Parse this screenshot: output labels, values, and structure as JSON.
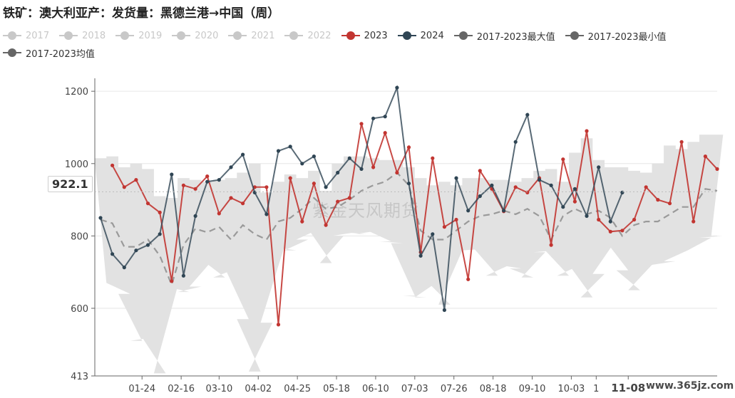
{
  "title": "铁矿：澳大利亚产：发货量：黑德兰港→中国（周）",
  "legend": [
    {
      "label": "2017",
      "color": "#c8c8c8",
      "active": false
    },
    {
      "label": "2018",
      "color": "#c8c8c8",
      "active": false
    },
    {
      "label": "2019",
      "color": "#c8c8c8",
      "active": false
    },
    {
      "label": "2020",
      "color": "#c8c8c8",
      "active": false
    },
    {
      "label": "2021",
      "color": "#c8c8c8",
      "active": false
    },
    {
      "label": "2022",
      "color": "#c8c8c8",
      "active": false
    },
    {
      "label": "2023",
      "color": "#c23531",
      "active": true
    },
    {
      "label": "2024",
      "color": "#2f4554",
      "active": true
    },
    {
      "label": "2017-2023最大值",
      "color": "#666666",
      "active": true
    },
    {
      "label": "2017-2023最小值",
      "color": "#666666",
      "active": true
    },
    {
      "label": "2017-2023均值",
      "color": "#666666",
      "active": true
    }
  ],
  "pointer_label": "922.1",
  "watermark": "紫金天风期货",
  "site_label": "www.365jz.com",
  "chart_data": {
    "type": "line",
    "ylim": [
      413,
      1220
    ],
    "yticks": [
      413,
      600,
      800,
      1000,
      1200
    ],
    "xticks": [
      {
        "label": "01-24",
        "week": 3.5
      },
      {
        "label": "02-16",
        "week": 6.8
      },
      {
        "label": "03-10",
        "week": 10.0
      },
      {
        "label": "04-02",
        "week": 13.3
      },
      {
        "label": "04-25",
        "week": 16.6
      },
      {
        "label": "05-18",
        "week": 19.9
      },
      {
        "label": "06-10",
        "week": 23.2
      },
      {
        "label": "07-03",
        "week": 26.5
      },
      {
        "label": "07-26",
        "week": 29.8
      },
      {
        "label": "08-18",
        "week": 33.1
      },
      {
        "label": "09-10",
        "week": 36.4
      },
      {
        "label": "10-03",
        "week": 39.7
      },
      {
        "label": "1",
        "week": 41.8
      },
      {
        "label": "11-08",
        "week": 44.5,
        "highlight": true
      }
    ],
    "weeks_total": 52,
    "series": [
      {
        "name": "2023",
        "color": "#c23531",
        "x_start": 1,
        "values": [
          995,
          935,
          955,
          890,
          865,
          675,
          940,
          930,
          965,
          862,
          905,
          890,
          935,
          935,
          555,
          960,
          840,
          945,
          830,
          895,
          905,
          1110,
          990,
          1085,
          975,
          1045,
          755,
          1015,
          825,
          845,
          680,
          980,
          930,
          868,
          935,
          920,
          960,
          775,
          1012,
          895,
          1090,
          845,
          812,
          815,
          845,
          935,
          900,
          890,
          1060,
          840,
          1020,
          985
        ]
      },
      {
        "name": "2024",
        "color": "#2f4554",
        "x_start": 0,
        "values": [
          850,
          750,
          713,
          760,
          775,
          805,
          970,
          690,
          855,
          950,
          955,
          990,
          1025,
          920,
          860,
          1035,
          1047,
          1000,
          1020,
          935,
          975,
          1015,
          985,
          1125,
          1130,
          1210,
          945,
          745,
          805,
          595,
          960,
          870,
          910,
          940,
          870,
          1060,
          1135,
          955,
          940,
          880,
          930,
          855,
          990,
          840,
          920
        ]
      },
      {
        "name": "2017-2023最大值",
        "color": "#e2e2e2",
        "x_start": 0,
        "values": [
          1015,
          1020,
          990,
          1000,
          985,
          910,
          905,
          960,
          955,
          950,
          955,
          960,
          975,
          1000,
          920,
          950,
          970,
          960,
          980,
          925,
          1000,
          1020,
          1020,
          1015,
          1010,
          1010,
          990,
          960,
          940,
          950,
          940,
          960,
          960,
          955,
          955,
          950,
          960,
          980,
          985,
          950,
          1030,
          1070,
          1010,
          990,
          990,
          980,
          975,
          1000,
          1050,
          1040,
          1060,
          1080,
          1080
        ]
      },
      {
        "name": "2017-2023最小值",
        "color": "#e2e2e2",
        "x_start": 0,
        "values": [
          670,
          670,
          640,
          510,
          520,
          420,
          660,
          645,
          660,
          735,
          685,
          710,
          570,
          425,
          560,
          770,
          760,
          790,
          820,
          725,
          800,
          810,
          805,
          815,
          785,
          780,
          635,
          630,
          675,
          610,
          760,
          760,
          765,
          690,
          720,
          710,
          685,
          755,
          760,
          690,
          720,
          630,
          695,
          790,
          705,
          650,
          720,
          720,
          730,
          760,
          760,
          795,
          800
        ]
      },
      {
        "name": "2017-2023均值",
        "color": "#9a9a9a",
        "x_start": 0,
        "values": [
          845,
          835,
          770,
          770,
          790,
          745,
          665,
          775,
          820,
          810,
          825,
          790,
          830,
          805,
          790,
          840,
          850,
          875,
          905,
          875,
          880,
          900,
          925,
          940,
          950,
          975,
          940,
          815,
          790,
          790,
          815,
          840,
          855,
          860,
          870,
          860,
          875,
          855,
          790,
          855,
          875,
          860,
          870,
          850,
          800,
          830,
          840,
          840,
          860,
          880,
          880,
          930,
          925
        ]
      }
    ]
  }
}
